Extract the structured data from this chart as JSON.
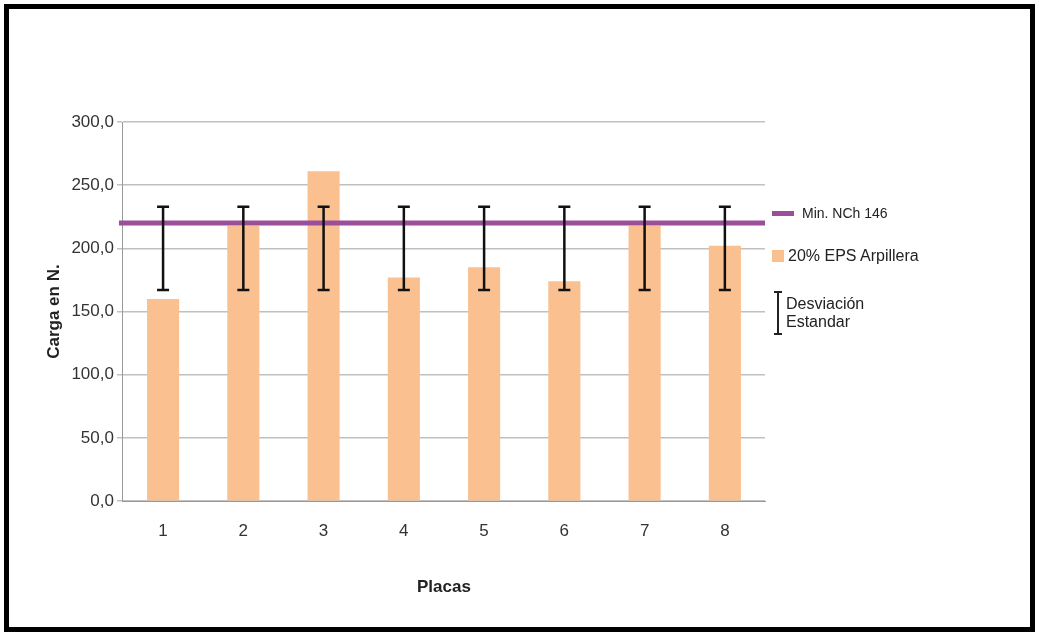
{
  "chart_data": {
    "type": "bar",
    "xlabel": "Placas",
    "ylabel": "Carga en N.",
    "categories": [
      "1",
      "2",
      "3",
      "4",
      "5",
      "6",
      "7",
      "8"
    ],
    "series": [
      {
        "name": "20% EPS Arpillera",
        "color": "#fac090",
        "values": [
          160,
          218,
          261,
          177,
          185,
          174,
          218,
          202
        ],
        "errors": [
          [
            167,
            233
          ],
          [
            167,
            233
          ],
          [
            167,
            233
          ],
          [
            167,
            233
          ],
          [
            167,
            233
          ],
          [
            167,
            233
          ],
          [
            167,
            233
          ],
          [
            167,
            233
          ]
        ]
      }
    ],
    "ylim": [
      0,
      300
    ],
    "yticks": [
      {
        "value": 0,
        "label": "0,0"
      },
      {
        "value": 50,
        "label": "50,0"
      },
      {
        "value": 100,
        "label": "100,0"
      },
      {
        "value": 150,
        "label": "150,0"
      },
      {
        "value": 200,
        "label": "200,0"
      },
      {
        "value": 250,
        "label": "250,0"
      },
      {
        "value": 300,
        "label": "300,0"
      }
    ],
    "ref_lines": [
      {
        "axis": "y",
        "value": 220,
        "label": "Min. NCh 146",
        "color": "#9b4f9b"
      }
    ],
    "annotations": [
      "Desviación Estandar"
    ],
    "grid": "y",
    "legend": "right"
  }
}
